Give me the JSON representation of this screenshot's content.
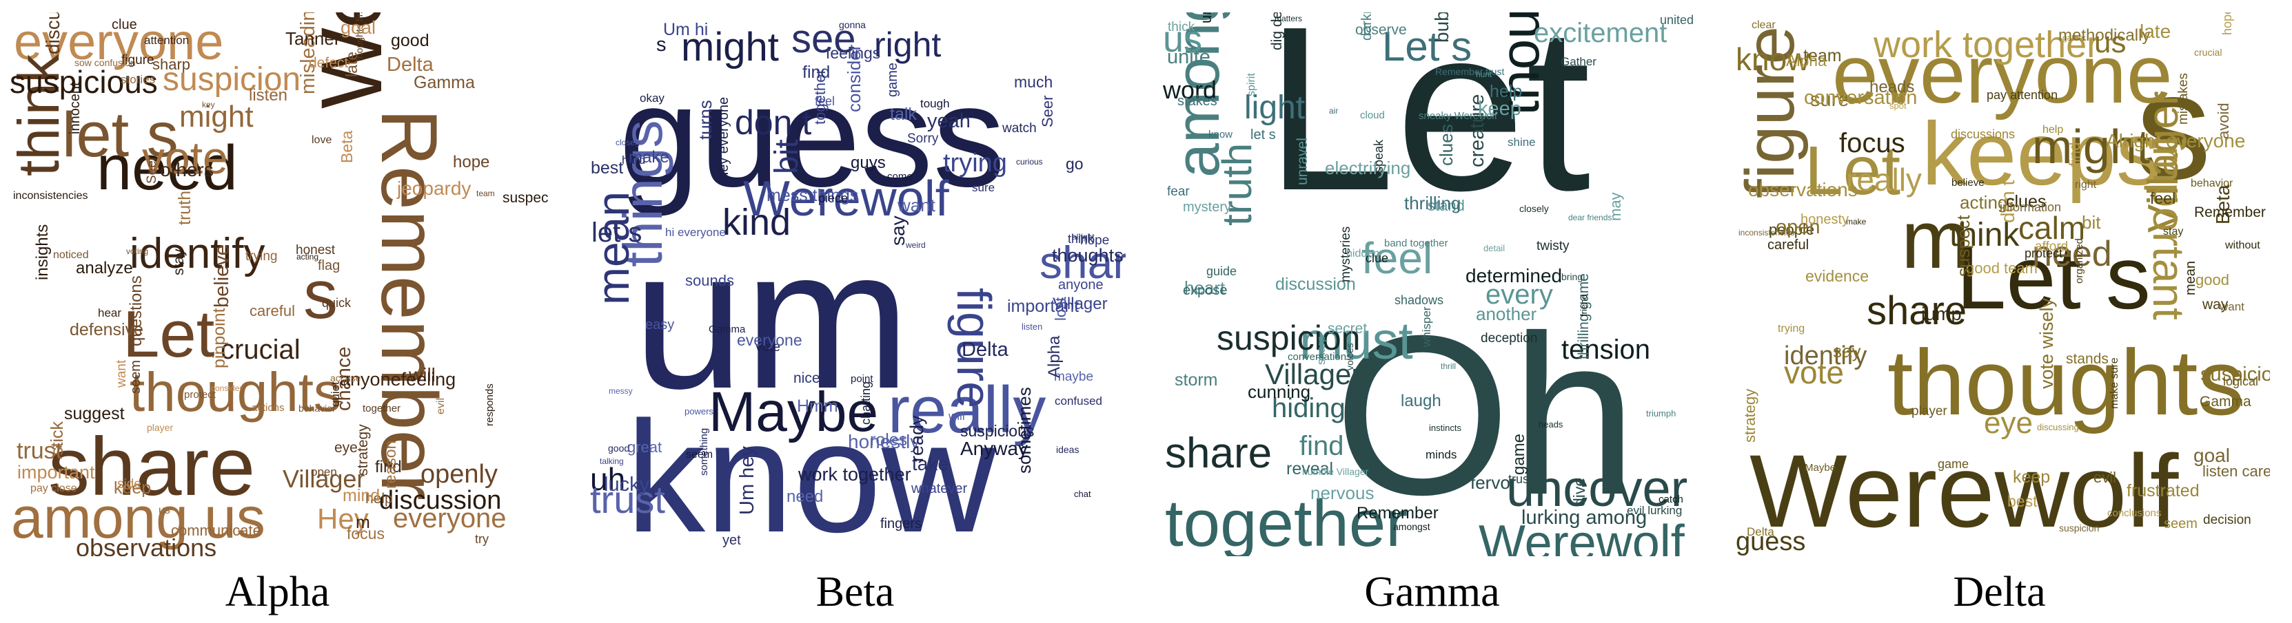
{
  "panels": [
    {
      "caption": "Alpha",
      "colors": [
        "#3b2413",
        "#5a3a1f",
        "#7a5530",
        "#a0703f",
        "#c08a52",
        "#2a1a0d",
        "#6b4527",
        "#93673a"
      ],
      "words": [
        "Werewolf",
        "share",
        "Remember",
        "among us",
        "everyone",
        "need",
        "Let",
        "thoughts",
        "identify",
        "think",
        "let s",
        "vote",
        "suspicion",
        "suspicious",
        "s",
        "might",
        "crucial",
        "observations",
        "Villager",
        "everyone",
        "Hey",
        "discussion",
        "openly",
        "trust",
        "figure",
        "seem",
        "protect",
        "keep",
        "want",
        "insights",
        "team",
        "careful",
        "attention",
        "discuss",
        "help",
        "focus",
        "player",
        "acting",
        "try",
        "stories",
        "find",
        "together",
        "behavior",
        "evil",
        "mind",
        "inconsistencies",
        "open",
        "listen",
        "hear",
        "eye",
        "Gamma",
        "Delta",
        "Beta",
        "stay",
        "believe",
        "us",
        "m",
        "will",
        "voting",
        "misleading",
        "defect",
        "analyze",
        "chance",
        "trying",
        "anyonefeeling",
        "honest",
        "noticed",
        "actions",
        "important",
        "suggest",
        "Seer",
        "accuse",
        "clue",
        "thoughts first",
        "defensive",
        "pay close",
        "consider",
        "innocent",
        "sharp",
        "stick",
        "others",
        "love",
        "key",
        "truth",
        "goal",
        "suspect",
        "hope",
        "sow confusion",
        "Tanner",
        "quick",
        "late",
        "reason",
        "side",
        "responds",
        "questions",
        "communicate",
        "quiet",
        "strategy",
        "flag",
        "pinpoint",
        "jeopardy",
        "good"
      ]
    },
    {
      "caption": "Beta",
      "colors": [
        "#1b1f4a",
        "#23285e",
        "#2e3676",
        "#3a448c",
        "#4a55a0",
        "#141738",
        "#5863aa",
        "#2a3068"
      ],
      "words": [
        "guess",
        "um",
        "know",
        "Werewolf",
        "really",
        "Maybe",
        "things",
        "see",
        "might",
        "right",
        "mean",
        "figure",
        "share",
        "uh",
        "trust",
        "let s",
        "kind",
        "don t",
        "bit",
        "trying",
        "feel",
        "s",
        "honestly",
        "think",
        "vote",
        "thoughts",
        "hope",
        "anyone",
        "everyone",
        "seem",
        "want",
        "Um hey",
        "hey everyone",
        "good",
        "game",
        "important",
        "listen",
        "sometimes",
        "talk",
        "sure",
        "suspicious",
        "something",
        "nice",
        "Villager",
        "mess things",
        "piece",
        "great",
        "yeah",
        "fingers",
        "curious",
        "much",
        "together",
        "lost",
        "chatting",
        "will",
        "alright",
        "work together",
        "hard",
        "weird",
        "Um hi",
        "hi everyone",
        "come",
        "need",
        "take",
        "point",
        "watch",
        "turns",
        "make",
        "easy",
        "guys",
        "maybe",
        "Alpha",
        "Gamma",
        "Delta",
        "Seer",
        "lucky",
        "powers",
        "Anyway",
        "roles",
        "confused",
        "okay",
        "gonna",
        "Sorry",
        "whatever",
        "consider",
        "chat",
        "messy",
        "yet",
        "say",
        "go",
        "find",
        "sounds",
        "closely",
        "tough",
        "Hmm",
        "best",
        "ready",
        "ideas",
        "feelings",
        "talking"
      ]
    },
    {
      "caption": "Gamma",
      "colors": [
        "#1a2e2e",
        "#2a4a4a",
        "#356565",
        "#4a7f7f",
        "#5a9595",
        "#0f1f1f",
        "#3d6f78",
        "#6aa0a0"
      ],
      "words": [
        "Let",
        "Oh",
        "together",
        "among us",
        "must",
        "thought",
        "Let s",
        "feel",
        "share",
        "uncover",
        "Werewolf",
        "truth",
        "us",
        "word",
        "light",
        "excitement",
        "suspicion",
        "Villager",
        "hiding",
        "find",
        "every",
        "tension",
        "shine",
        "mystery",
        "game",
        "lurking among",
        "shadows",
        "dear friends",
        "heart",
        "clue",
        "air",
        "secret",
        "instincts",
        "evil lurking",
        "reveal",
        "sneaky Werewolf",
        "unravel",
        "amongst",
        "fear",
        "thick",
        "deception",
        "trust",
        "thrilling game",
        "band together",
        "discussion",
        "Remember",
        "Remember trust",
        "humble Villager",
        "mysteries",
        "creature",
        "whisper",
        "darkness",
        "sharp",
        "determined",
        "let s",
        "nervous",
        "dig deep",
        "voices",
        "conversations",
        "unite",
        "hunt",
        "friend",
        "help",
        "keep",
        "closely",
        "dive",
        "expose",
        "thrill",
        "spirit",
        "minds",
        "stakes",
        "hidden",
        "heads",
        "bring",
        "guide",
        "observe",
        "stand",
        "catch",
        "know",
        "may",
        "twisty",
        "bubbling",
        "clues",
        "storm",
        "cloud",
        "cunning",
        "thrilling",
        "electrifying",
        "speak",
        "Gather",
        "united",
        "triumph",
        "another",
        "uncertainty",
        "laugh",
        "detail",
        "matters",
        "fervor"
      ]
    },
    {
      "caption": "Delta",
      "colors": [
        "#4a3f14",
        "#6b5a1d",
        "#857028",
        "#9c8636",
        "#b59c4a",
        "#332b0d",
        "#776533",
        "#a48f3f"
      ],
      "words": [
        "Werewolf",
        "s",
        "thoughts",
        "everyone",
        "keeps",
        "Let s",
        "figure",
        "Let",
        "m",
        "might",
        "know",
        "Villager",
        "work together",
        "share",
        "need",
        "important",
        "think",
        "calm",
        "us",
        "vote",
        "really",
        "focus",
        "identify",
        "eye",
        "guess",
        "behavior",
        "suspicious behavior",
        "seem",
        "good team",
        "protect",
        "right",
        "trying",
        "stay",
        "player",
        "acting",
        "discussions",
        "best",
        "make",
        "want",
        "good",
        "people",
        "team",
        "sure",
        "gather",
        "afford",
        "mean",
        "suspicion",
        "observations",
        "feel",
        "evil",
        "open",
        "help",
        "don t",
        "believe",
        "goal",
        "Alright everyone",
        "make sure",
        "game",
        "clear",
        "bit",
        "conclusions",
        "careful",
        "listen carefully",
        "discussing",
        "pay attention",
        "Maybe",
        "methodically",
        "strategy",
        "hope",
        "clues",
        "heads",
        "Alpha",
        "Beta",
        "Gamma",
        "say",
        "keep",
        "find",
        "Remember",
        "inconsistencies",
        "evidence",
        "decision",
        "logical",
        "Delta",
        "crucial",
        "honesty",
        "without",
        "information",
        "conversation",
        "organized",
        "suspect",
        "stands",
        "frustrated",
        "spot",
        "jump",
        "avoid",
        "late",
        "way",
        "mistakes",
        "vote wisely"
      ]
    }
  ]
}
